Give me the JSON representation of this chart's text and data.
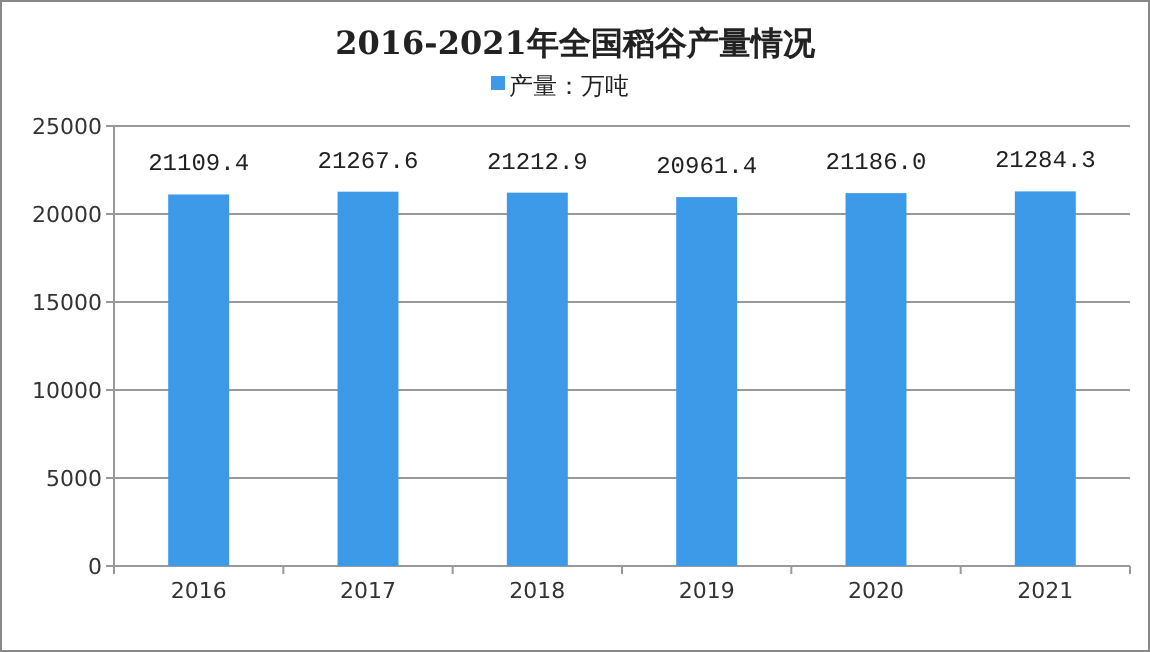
{
  "chart_data": {
    "type": "bar",
    "title": "2016-2021年全国稻谷产量情况",
    "categories": [
      "2016",
      "2017",
      "2018",
      "2019",
      "2020",
      "2021"
    ],
    "series": [
      {
        "name": "产量：万吨",
        "color": "#3d9ae8",
        "values": [
          21109.4,
          21267.6,
          21212.9,
          20961.4,
          21186.0,
          21284.3
        ],
        "value_labels": [
          "21109.4",
          "21267.6",
          "21212.9",
          "20961.4",
          "21186.0",
          "21284.3"
        ]
      }
    ],
    "ylim": [
      0,
      25000
    ],
    "yticks": [
      0,
      5000,
      10000,
      15000,
      20000,
      25000
    ],
    "grid": "y",
    "legend": "top"
  }
}
